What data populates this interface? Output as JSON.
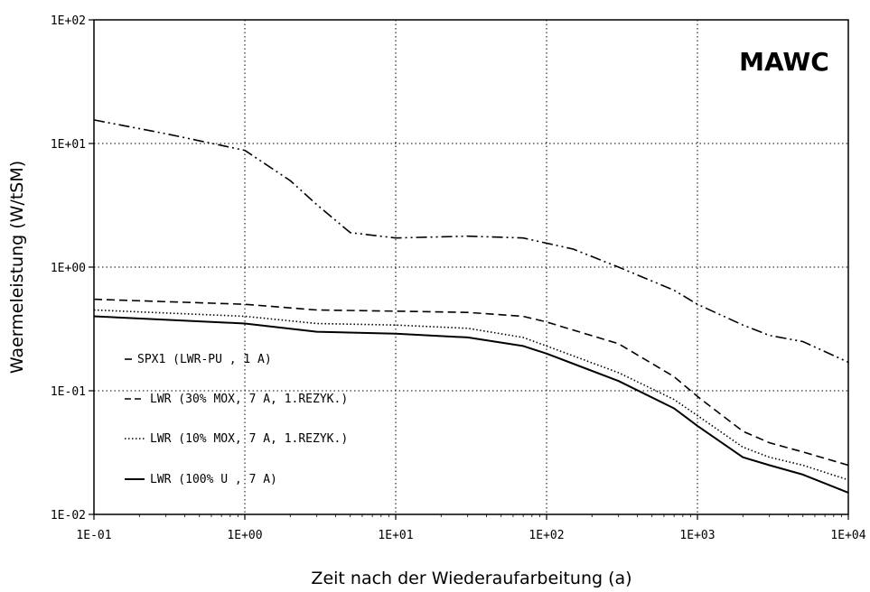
{
  "chart_data": {
    "type": "line",
    "title": "MAWC",
    "xlabel": "Zeit nach der Wiederaufarbeitung (a)",
    "ylabel": "Waermeleistung (W/tSM)",
    "xscale": "log",
    "yscale": "log",
    "xlim": [
      0.1,
      10000
    ],
    "ylim": [
      0.01,
      100
    ],
    "grid": true,
    "legend_position": "lower-left",
    "x_tick_labels": [
      "1E-01",
      "1E+00",
      "1E+01",
      "1E+02",
      "1E+03",
      "1E+04"
    ],
    "y_tick_labels": [
      "1E-02",
      "1E-01",
      "1E+00",
      "1E+01",
      "1E+02"
    ],
    "series": [
      {
        "name": "SPX1 (LWR-PU , 1 A)",
        "style": "dashdotdot",
        "x": [
          0.1,
          0.3,
          1,
          2,
          3,
          5,
          10,
          30,
          70,
          150,
          300,
          700,
          1000,
          2000,
          3000,
          5000,
          10000
        ],
        "y": [
          15.5,
          12,
          8.8,
          5,
          3.2,
          1.9,
          1.72,
          1.78,
          1.72,
          1.4,
          1.0,
          0.65,
          0.5,
          0.34,
          0.28,
          0.25,
          0.17
        ]
      },
      {
        "name": "LWR (30% MOX, 7 A, 1.REZYK.)",
        "style": "dashed",
        "x": [
          0.1,
          1,
          3,
          10,
          30,
          70,
          100,
          300,
          700,
          1000,
          2000,
          3000,
          5000,
          10000
        ],
        "y": [
          0.55,
          0.5,
          0.45,
          0.44,
          0.43,
          0.4,
          0.36,
          0.24,
          0.13,
          0.09,
          0.047,
          0.038,
          0.032,
          0.025
        ]
      },
      {
        "name": "LWR (10% MOX, 7 A, 1.REZYK.)",
        "style": "dotted",
        "x": [
          0.1,
          1,
          3,
          10,
          30,
          70,
          100,
          300,
          700,
          1000,
          2000,
          3000,
          5000,
          10000
        ],
        "y": [
          0.45,
          0.4,
          0.35,
          0.34,
          0.32,
          0.27,
          0.23,
          0.14,
          0.085,
          0.063,
          0.035,
          0.029,
          0.025,
          0.019
        ]
      },
      {
        "name": "LWR (100% U , 7 A)",
        "style": "solid",
        "x": [
          0.1,
          1,
          3,
          10,
          30,
          70,
          100,
          300,
          700,
          1000,
          2000,
          3000,
          5000,
          10000
        ],
        "y": [
          0.4,
          0.35,
          0.3,
          0.29,
          0.27,
          0.23,
          0.2,
          0.12,
          0.072,
          0.052,
          0.029,
          0.025,
          0.021,
          0.015
        ]
      }
    ]
  }
}
